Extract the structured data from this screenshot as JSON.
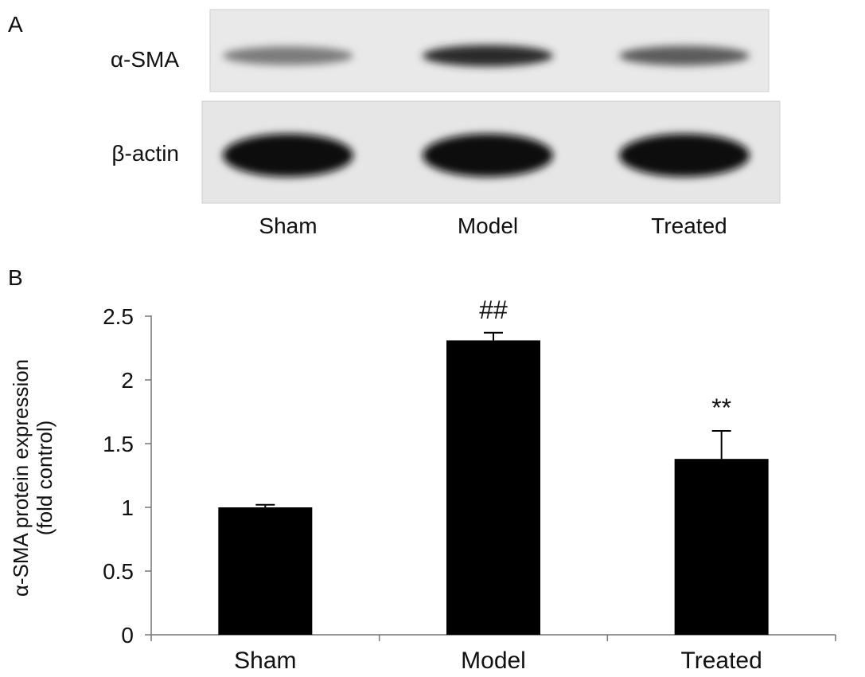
{
  "panel_a": {
    "label": "A",
    "rows": [
      {
        "label": "α-SMA",
        "band_intensity": [
          0.45,
          0.85,
          0.6
        ]
      },
      {
        "label": "β-actin",
        "band_intensity": [
          1.0,
          1.0,
          1.0
        ]
      }
    ],
    "lanes": [
      "Sham",
      "Model",
      "Treated"
    ]
  },
  "panel_b": {
    "label": "B"
  },
  "chart_data": {
    "type": "bar",
    "categories": [
      "Sham",
      "Model",
      "Treated"
    ],
    "values": [
      1.0,
      2.31,
      1.38
    ],
    "errors": [
      0.02,
      0.06,
      0.22
    ],
    "annotations": [
      "",
      "##",
      "**"
    ],
    "ylabel_line1": "α-SMA protein expression",
    "ylabel_line2": "(fold control)",
    "xlabel": "",
    "ylim": [
      0,
      2.5
    ],
    "yticks": [
      0,
      0.5,
      1,
      1.5,
      2,
      2.5
    ],
    "ytick_labels": [
      "0",
      "0.5",
      "1",
      "1.5",
      "2",
      "2.5"
    ],
    "bar_color": "#000000",
    "grid": false
  }
}
